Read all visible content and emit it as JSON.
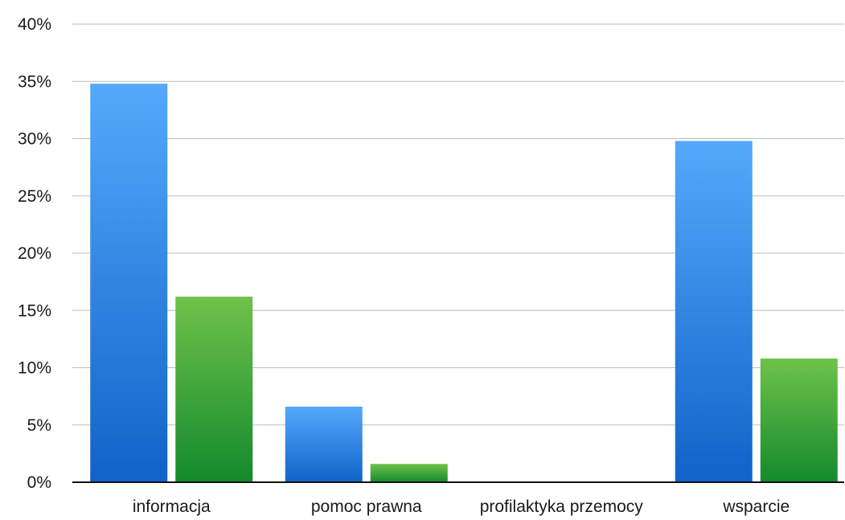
{
  "chart_data": {
    "type": "bar",
    "title": "",
    "xlabel": "",
    "ylabel": "",
    "categories": [
      "informacja",
      "pomoc prawna",
      "profilaktyka przemocy",
      "wsparcie"
    ],
    "series": [
      {
        "values": [
          34.8,
          6.6,
          0,
          29.8
        ],
        "color_top": "#55a9fb",
        "color_bottom": "#0f63c8"
      },
      {
        "values": [
          16.2,
          1.6,
          0,
          10.8
        ],
        "color_top": "#6fc24a",
        "color_bottom": "#138a2d"
      }
    ],
    "ylim": [
      0,
      40
    ],
    "yticks": [
      0,
      5,
      10,
      15,
      20,
      25,
      30,
      35,
      40
    ],
    "ytick_labels": [
      "0%",
      "5%",
      "10%",
      "15%",
      "20%",
      "25%",
      "30%",
      "35%",
      "40%"
    ],
    "grid": true,
    "legend": "none"
  }
}
